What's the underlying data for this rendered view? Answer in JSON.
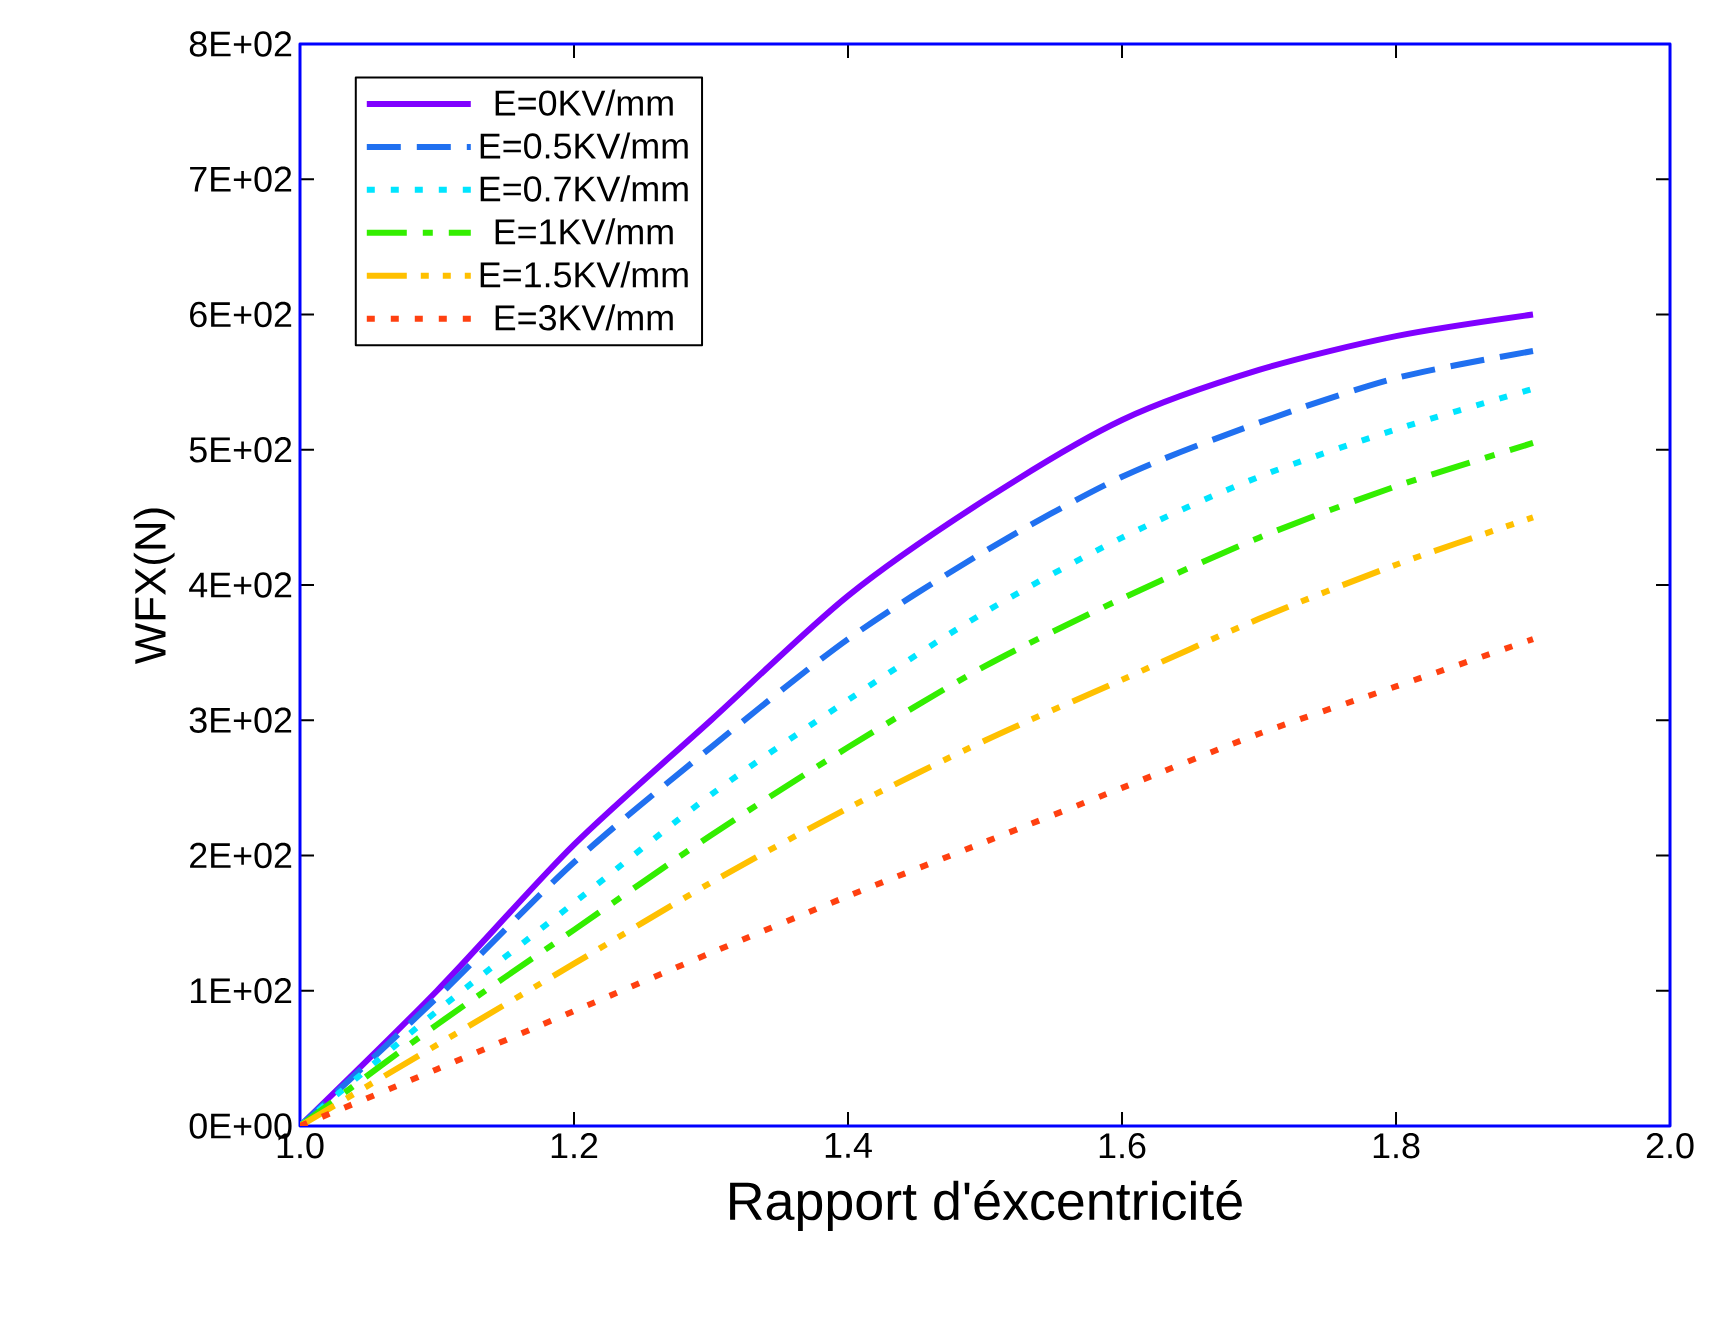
{
  "chart_data": {
    "type": "line",
    "xlabel": "Rapport d'éxcentricité",
    "ylabel": "WFX(N)",
    "x": [
      1.0,
      1.1,
      1.2,
      1.3,
      1.4,
      1.5,
      1.6,
      1.7,
      1.8,
      1.9
    ],
    "xlim": [
      1.0,
      2.0
    ],
    "xticks": [
      {
        "value": 1.0,
        "label": "1.0"
      },
      {
        "value": 1.2,
        "label": "1.2"
      },
      {
        "value": 1.4,
        "label": "1.4"
      },
      {
        "value": 1.6,
        "label": "1.6"
      },
      {
        "value": 1.8,
        "label": "1.8"
      },
      {
        "value": 2.0,
        "label": "2.0"
      }
    ],
    "ylim": [
      0,
      800
    ],
    "yticks": [
      {
        "value": 0,
        "label": "0E+00"
      },
      {
        "value": 100,
        "label": "1E+02"
      },
      {
        "value": 200,
        "label": "2E+02"
      },
      {
        "value": 300,
        "label": "3E+02"
      },
      {
        "value": 400,
        "label": "4E+02"
      },
      {
        "value": 500,
        "label": "5E+02"
      },
      {
        "value": 600,
        "label": "6E+02"
      },
      {
        "value": 700,
        "label": "7E+02"
      },
      {
        "value": 800,
        "label": "8E+02"
      }
    ],
    "grid": false,
    "legend": "top left",
    "marker": "none",
    "series": [
      {
        "name": "E=0KV/mm",
        "color": "#8000ff",
        "line_style": "solid",
        "values": [
          0,
          100,
          208,
          300,
          392,
          463,
          522,
          559,
          584,
          600
        ]
      },
      {
        "name": "E=0.5KV/mm",
        "color": "#2070f0",
        "line_style": "dashed",
        "values": [
          0,
          95,
          195,
          280,
          360,
          425,
          480,
          520,
          553,
          573
        ]
      },
      {
        "name": "E=0.7KV/mm",
        "color": "#00e5ff",
        "line_style": "dotted",
        "values": [
          0,
          85,
          165,
          245,
          315,
          380,
          435,
          480,
          515,
          545
        ]
      },
      {
        "name": "E=1KV/mm",
        "color": "#33ee00",
        "line_style": "dashdot",
        "values": [
          0,
          75,
          145,
          215,
          280,
          340,
          390,
          435,
          473,
          505
        ]
      },
      {
        "name": "E=1.5KV/mm",
        "color": "#ffc000",
        "line_style": "dashdotdot",
        "values": [
          0,
          60,
          120,
          180,
          235,
          285,
          330,
          375,
          415,
          450
        ]
      },
      {
        "name": "E=3KV/mm",
        "color": "#ff4010",
        "line_style": "dotted",
        "values": [
          0,
          42,
          85,
          128,
          170,
          210,
          250,
          290,
          325,
          360
        ]
      }
    ]
  }
}
